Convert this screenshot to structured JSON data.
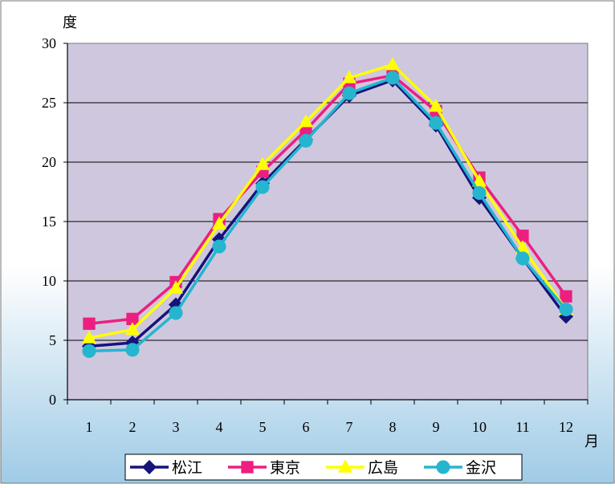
{
  "chart_data": {
    "type": "line",
    "ylabel": "度",
    "xlabel": "月",
    "ylim": [
      0,
      30
    ],
    "yticks": [
      0,
      5,
      10,
      15,
      20,
      25,
      30
    ],
    "categories": [
      "1",
      "2",
      "3",
      "4",
      "5",
      "6",
      "7",
      "8",
      "9",
      "10",
      "11",
      "12"
    ],
    "grid": true,
    "legend_position": "bottom",
    "series": [
      {
        "name": "松江",
        "marker": "diamond",
        "color": "#14147a",
        "values": [
          4.5,
          4.8,
          8.0,
          13.5,
          18.2,
          21.9,
          25.6,
          26.9,
          23.1,
          17.0,
          11.9,
          7.0
        ]
      },
      {
        "name": "東京",
        "marker": "square",
        "color": "#ec1f80",
        "values": [
          6.4,
          6.8,
          9.9,
          15.2,
          19.2,
          22.7,
          26.6,
          27.3,
          24.3,
          18.7,
          13.8,
          8.7
        ]
      },
      {
        "name": "広島",
        "marker": "triangle",
        "color": "#ffff00",
        "values": [
          5.2,
          5.9,
          9.4,
          14.8,
          19.8,
          23.4,
          27.1,
          28.2,
          24.7,
          18.4,
          12.8,
          7.6
        ]
      },
      {
        "name": "金沢",
        "marker": "circle",
        "color": "#25b5cf",
        "values": [
          4.1,
          4.2,
          7.3,
          12.9,
          17.9,
          21.8,
          25.8,
          27.1,
          23.3,
          17.4,
          11.9,
          7.6
        ]
      }
    ]
  },
  "colors": {
    "plot_bg": "#cfc7de",
    "grid": "#000000"
  }
}
